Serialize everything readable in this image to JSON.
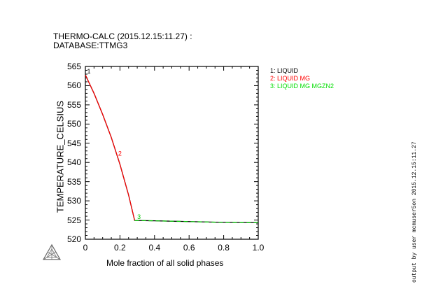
{
  "header": {
    "title_line1": "THERMO-CALC (2015.12.15:11.27) :",
    "title_line2": "DATABASE:TTMG3"
  },
  "side_credit": "output by user mcmuser5on 2015.12.15:11.27",
  "chart_data": {
    "type": "line",
    "xlabel": "Mole fraction of all solid phases",
    "ylabel": "TEMPERATURE_CELSIUS",
    "xlim": [
      0,
      1.0
    ],
    "ylim": [
      520,
      565
    ],
    "xticks": [
      "0",
      "0.2",
      "0.4",
      "0.6",
      "0.8",
      "1.0"
    ],
    "yticks": [
      "520",
      "525",
      "530",
      "535",
      "540",
      "545",
      "550",
      "555",
      "560",
      "565"
    ],
    "grid": false,
    "legend_position": "top-right-outside",
    "series": [
      {
        "name": "1: LIQUID",
        "color": "#000000",
        "style": "solid",
        "x": [
          0.0,
          0.05,
          0.1,
          0.15,
          0.2,
          0.25,
          0.285,
          0.4,
          0.6,
          0.8,
          1.0
        ],
        "y": [
          562.8,
          558.0,
          552.5,
          546.5,
          539.5,
          531.5,
          524.9,
          524.8,
          524.6,
          524.4,
          524.3
        ]
      },
      {
        "name": "2: LIQUID MG",
        "color": "#ff0000",
        "style": "solid",
        "x": [
          0.0,
          0.05,
          0.1,
          0.15,
          0.2,
          0.25,
          0.285
        ],
        "y": [
          562.8,
          558.0,
          552.5,
          546.5,
          539.5,
          531.5,
          524.9
        ]
      },
      {
        "name": "3: LIQUID MG MGZN2",
        "color": "#00cc00",
        "style": "dashed",
        "x": [
          0.285,
          0.4,
          0.6,
          0.8,
          1.0
        ],
        "y": [
          524.9,
          524.8,
          524.6,
          524.4,
          524.3
        ]
      }
    ],
    "point_labels": [
      {
        "text": "1",
        "x": 0.01,
        "y": 563.2,
        "color": "#000000"
      },
      {
        "text": "2",
        "x": 0.19,
        "y": 541.8,
        "color": "#ff0000"
      },
      {
        "text": "3",
        "x": 0.3,
        "y": 525.3,
        "color": "#00cc00"
      }
    ]
  }
}
